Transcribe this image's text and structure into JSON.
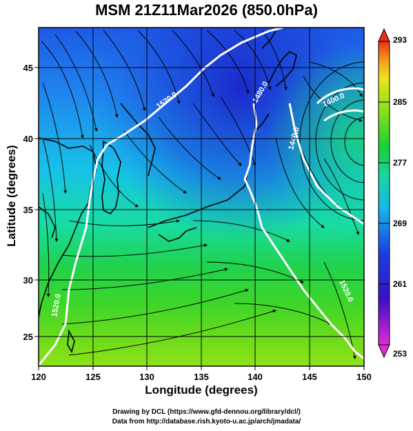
{
  "title": "MSM 21Z11Mar2026 (850.0hPa)",
  "axes": {
    "xlabel": "Longitude (degrees)",
    "ylabel": "Latitude  (degrees)",
    "x_ticks": [
      "120",
      "125",
      "130",
      "135",
      "140",
      "145",
      "150"
    ],
    "y_ticks": [
      "25",
      "30",
      "35",
      "40",
      "45"
    ]
  },
  "colorbar": {
    "ticks": [
      "293",
      "285",
      "277",
      "269",
      "261",
      "253"
    ]
  },
  "contour_labels": [
    "1520.0",
    "1480.0",
    "1440.0",
    "1400.0",
    "1520.0",
    "1520.0"
  ],
  "footer": {
    "line1": "Drawing by DCL (https://www.gfd-dennou.org/library/dcl/)",
    "line2": "Data from http://database.rish.kyoto-u.ac.jp/arch/jmadata/"
  },
  "chart_data": {
    "type": "heatmap",
    "title": "MSM 21Z11Mar2026 (850.0hPa)",
    "xlabel": "Longitude (degrees)",
    "ylabel": "Latitude  (degrees)",
    "xlim": [
      120,
      150
    ],
    "ylim": [
      22.4,
      47.6
    ],
    "colorbar_range": [
      253,
      293
    ],
    "contour_levels": [
      1400,
      1440,
      1480,
      1520
    ],
    "grid": true
  }
}
